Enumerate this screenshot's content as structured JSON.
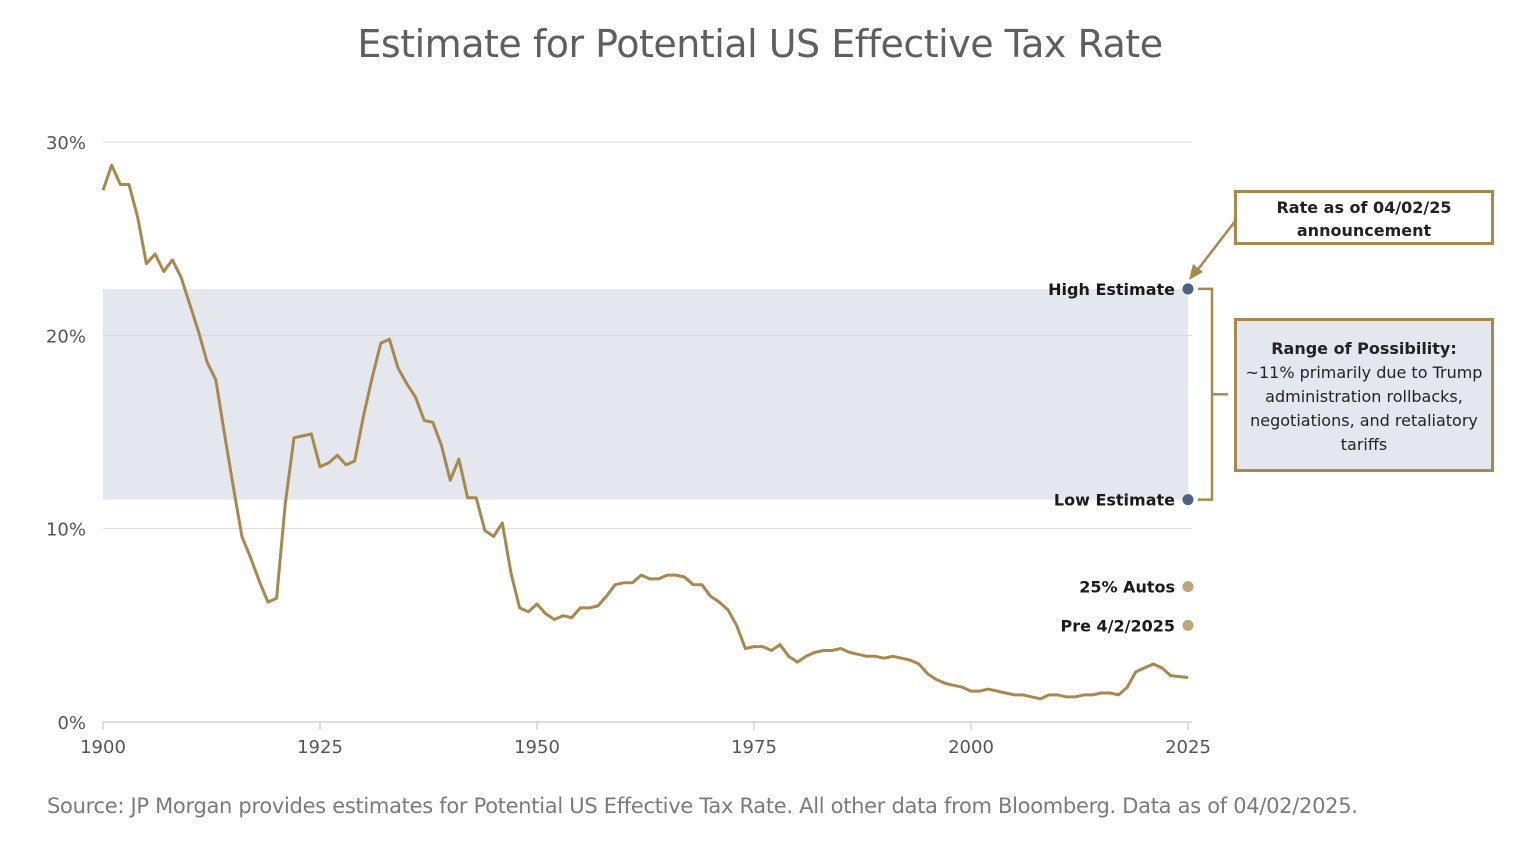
{
  "chart_data": {
    "type": "line",
    "title": "Estimate for Potential US Effective Tax Rate",
    "source": "Source: JP Morgan provides estimates for Potential US Effective Tax Rate. All other data from Bloomberg. Data as of 04/02/2025.",
    "xlim": [
      1900,
      2025
    ],
    "ylim": [
      0,
      30
    ],
    "x_ticks": [
      1900,
      1925,
      1950,
      1975,
      2000,
      2025
    ],
    "y_ticks": [
      {
        "value": 0,
        "label": "0%"
      },
      {
        "value": 10,
        "label": "10%"
      },
      {
        "value": 20,
        "label": "20%"
      },
      {
        "value": 30,
        "label": "30%"
      }
    ],
    "grid": "horizontal",
    "range_band": {
      "low": 11.5,
      "high": 22.4
    },
    "series": [
      {
        "color": "#a8894d",
        "x": [
          1900,
          1901,
          1902,
          1903,
          1904,
          1905,
          1906,
          1907,
          1908,
          1909,
          1910,
          1911,
          1912,
          1913,
          1914,
          1915,
          1916,
          1917,
          1918,
          1919,
          1920,
          1921,
          1922,
          1923,
          1924,
          1925,
          1926,
          1927,
          1928,
          1929,
          1930,
          1931,
          1932,
          1933,
          1934,
          1935,
          1936,
          1937,
          1938,
          1939,
          1940,
          1941,
          1942,
          1943,
          1944,
          1945,
          1946,
          1947,
          1948,
          1949,
          1950,
          1951,
          1952,
          1953,
          1954,
          1955,
          1956,
          1957,
          1958,
          1959,
          1960,
          1961,
          1962,
          1963,
          1964,
          1965,
          1966,
          1967,
          1968,
          1969,
          1970,
          1971,
          1972,
          1973,
          1974,
          1975,
          1976,
          1977,
          1978,
          1979,
          1980,
          1981,
          1982,
          1983,
          1984,
          1985,
          1986,
          1987,
          1988,
          1989,
          1990,
          1991,
          1992,
          1993,
          1994,
          1995,
          1996,
          1997,
          1998,
          1999,
          2000,
          2001,
          2002,
          2003,
          2004,
          2005,
          2006,
          2007,
          2008,
          2009,
          2010,
          2011,
          2012,
          2013,
          2014,
          2015,
          2016,
          2017,
          2018,
          2019,
          2020,
          2021,
          2022,
          2023,
          2024,
          2025
        ],
        "values": [
          27.5,
          28.8,
          27.8,
          27.8,
          26.1,
          23.7,
          24.2,
          23.3,
          23.9,
          23.0,
          21.6,
          20.2,
          18.6,
          17.7,
          14.9,
          12.2,
          9.6,
          8.5,
          7.3,
          6.2,
          6.4,
          11.3,
          14.7,
          14.8,
          14.9,
          13.2,
          13.4,
          13.8,
          13.3,
          13.5,
          15.8,
          17.8,
          19.6,
          19.8,
          18.3,
          17.5,
          16.8,
          15.6,
          15.5,
          14.3,
          12.5,
          13.6,
          11.6,
          11.6,
          9.9,
          9.6,
          10.3,
          7.7,
          5.9,
          5.7,
          6.1,
          5.6,
          5.3,
          5.5,
          5.4,
          5.9,
          5.9,
          6.0,
          6.5,
          7.1,
          7.2,
          7.2,
          7.6,
          7.4,
          7.4,
          7.6,
          7.6,
          7.5,
          7.1,
          7.1,
          6.5,
          6.2,
          5.8,
          5.0,
          3.8,
          3.9,
          3.9,
          3.7,
          4.0,
          3.4,
          3.1,
          3.4,
          3.6,
          3.7,
          3.7,
          3.8,
          3.6,
          3.5,
          3.4,
          3.4,
          3.3,
          3.4,
          3.3,
          3.2,
          3.0,
          2.5,
          2.2,
          2.0,
          1.9,
          1.8,
          1.6,
          1.6,
          1.7,
          1.6,
          1.5,
          1.4,
          1.4,
          1.3,
          1.2,
          1.4,
          1.4,
          1.3,
          1.3,
          1.4,
          1.4,
          1.5,
          1.5,
          1.4,
          1.8,
          2.6,
          2.8,
          3.0,
          2.8,
          2.4,
          2.35,
          2.3
        ]
      }
    ],
    "markers": [
      {
        "label": "High Estimate",
        "value": 22.4,
        "color": "#4b6282"
      },
      {
        "label": "Low Estimate",
        "value": 11.5,
        "color": "#4b6282"
      },
      {
        "label": "25% Autos",
        "value": 7.0,
        "color": "#bba77a"
      },
      {
        "label": "Pre 4/2/2025",
        "value": 5.0,
        "color": "#bba77a"
      }
    ],
    "callouts": {
      "rate_line1": "Rate as of 04/02/25",
      "rate_line2": "announcement",
      "range_bold": "Range of Possibility:",
      "range_text": " ~11% primarily due to Trump administration rollbacks, negotiations, and retaliatory tariffs"
    },
    "colors": {
      "line": "#a8894d",
      "band": "#e4e7ed",
      "grid": "#d9d9d9",
      "axis": "#555555"
    }
  }
}
